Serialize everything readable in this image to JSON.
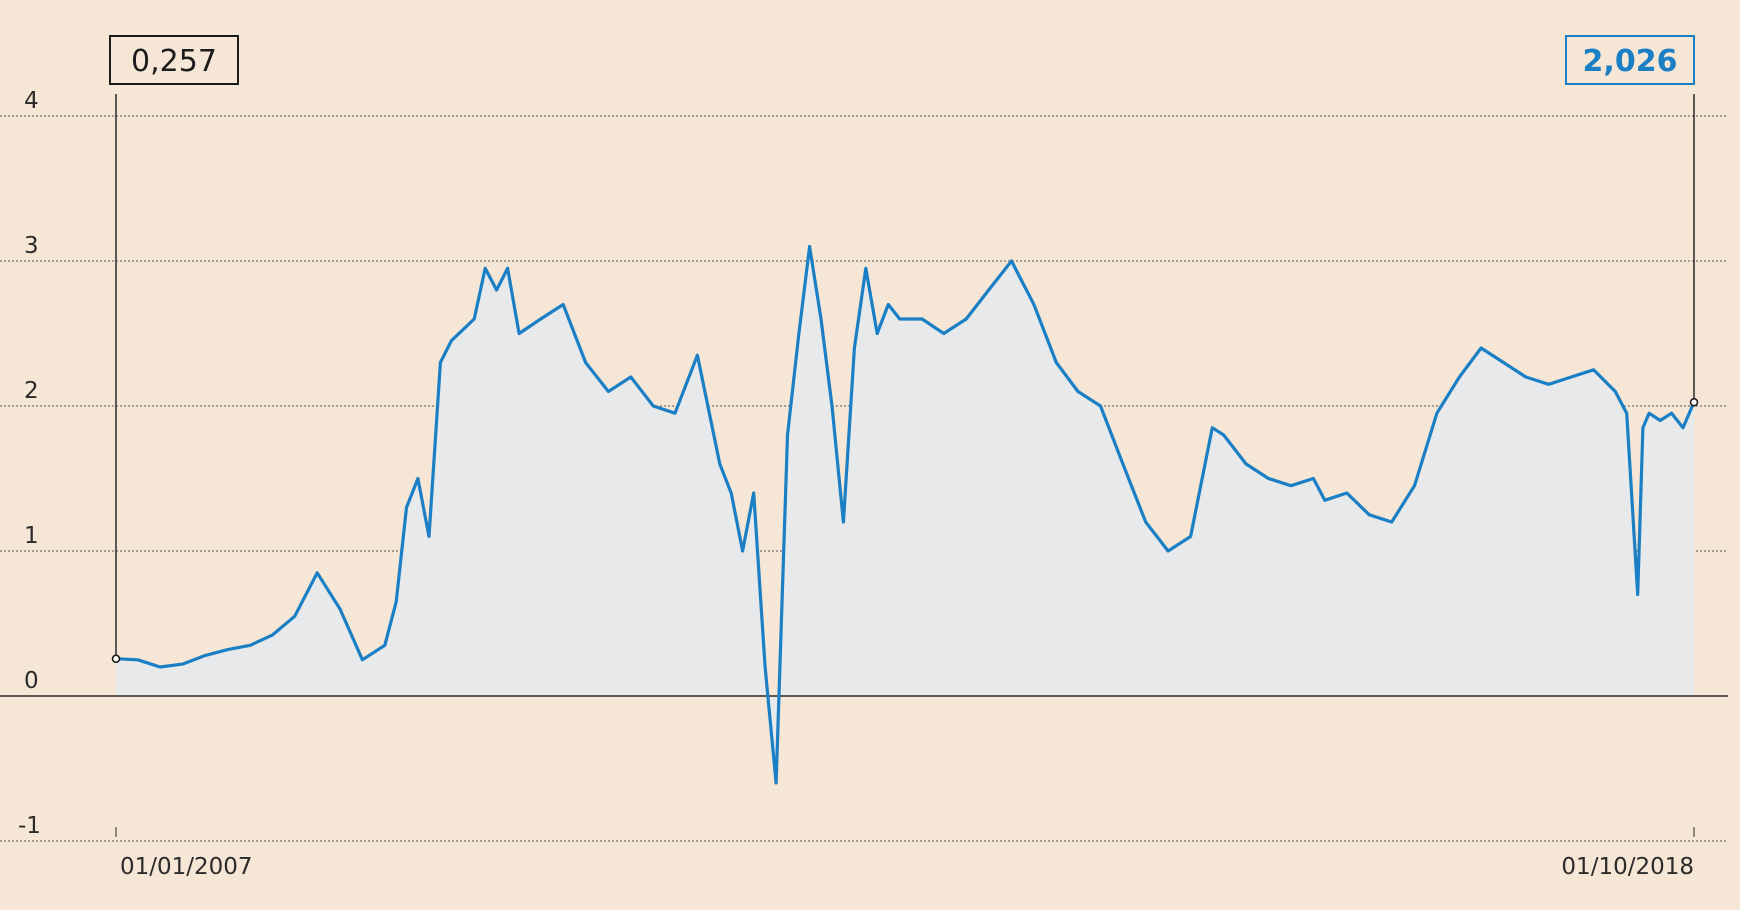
{
  "colors": {
    "background": "#f6e6d5",
    "area_fill": "#e8e9ea",
    "line": "#1a7fc4",
    "axis": "#2b2b2b",
    "grid": "#555555",
    "start_box": "#1c1c1c",
    "end_box": "#1a7fc4"
  },
  "callouts": {
    "start_value": "0,257",
    "end_value": "2,026"
  },
  "chart_data": {
    "type": "area",
    "title": "",
    "xlabel": "",
    "ylabel": "",
    "ylim": [
      -1,
      4
    ],
    "y_ticks": [
      -1,
      0,
      1,
      2,
      3,
      4
    ],
    "y_tick_labels": [
      "-1",
      "0",
      "1",
      "2",
      "3",
      "4"
    ],
    "x_tick_labels": [
      "01/01/2007",
      "01/10/2018"
    ],
    "xlim": [
      "2007-01-01",
      "2018-10-01"
    ],
    "grid": true,
    "legend": "none",
    "series": [
      {
        "x": [
          "2007-01-01",
          "2007-03-01",
          "2007-05-01",
          "2007-07-01",
          "2007-09-01",
          "2007-11-01",
          "2008-01-01",
          "2008-03-01",
          "2008-05-01",
          "2008-07-01",
          "2008-09-01",
          "2008-11-01",
          "2009-01-01",
          "2009-02-01",
          "2009-03-01",
          "2009-04-01",
          "2009-05-01",
          "2009-06-01",
          "2009-07-01",
          "2009-09-01",
          "2009-10-01",
          "2009-11-01",
          "2009-12-01",
          "2010-01-01",
          "2010-03-01",
          "2010-05-01",
          "2010-07-01",
          "2010-09-01",
          "2010-11-01",
          "2011-01-01",
          "2011-03-01",
          "2011-05-01",
          "2011-07-01",
          "2011-08-01",
          "2011-09-01",
          "2011-10-01",
          "2011-11-01",
          "2011-12-01",
          "2012-01-01",
          "2012-02-01",
          "2012-03-01",
          "2012-04-01",
          "2012-05-01",
          "2012-06-01",
          "2012-07-01",
          "2012-08-01",
          "2012-09-01",
          "2012-10-01",
          "2012-11-01",
          "2013-01-01",
          "2013-03-01",
          "2013-05-01",
          "2013-07-01",
          "2013-09-01",
          "2013-11-01",
          "2014-01-01",
          "2014-03-01",
          "2014-05-01",
          "2014-07-01",
          "2014-09-01",
          "2014-11-01",
          "2015-01-01",
          "2015-03-01",
          "2015-04-01",
          "2015-06-01",
          "2015-08-01",
          "2015-10-01",
          "2015-12-01",
          "2016-01-01",
          "2016-03-01",
          "2016-05-01",
          "2016-07-01",
          "2016-09-01",
          "2016-11-01",
          "2017-01-01",
          "2017-03-01",
          "2017-05-01",
          "2017-07-01",
          "2017-09-01",
          "2017-11-01",
          "2018-01-01",
          "2018-03-01",
          "2018-04-01",
          "2018-05-01",
          "2018-05-15",
          "2018-06-01",
          "2018-07-01",
          "2018-08-01",
          "2018-09-01",
          "2018-10-01"
        ],
        "values": [
          0.257,
          0.25,
          0.2,
          0.22,
          0.28,
          0.32,
          0.35,
          0.42,
          0.55,
          0.85,
          0.6,
          0.25,
          0.35,
          0.65,
          1.3,
          1.5,
          1.1,
          2.3,
          2.45,
          2.6,
          2.95,
          2.8,
          2.95,
          2.5,
          2.6,
          2.7,
          2.3,
          2.1,
          2.2,
          2.0,
          1.95,
          2.35,
          1.6,
          1.4,
          1.0,
          1.4,
          0.2,
          -0.6,
          1.8,
          2.5,
          3.1,
          2.6,
          2.0,
          1.2,
          2.4,
          2.95,
          2.5,
          2.7,
          2.6,
          2.6,
          2.5,
          2.6,
          2.8,
          3.0,
          2.7,
          2.3,
          2.1,
          2.0,
          1.6,
          1.2,
          1.0,
          1.1,
          1.85,
          1.8,
          1.6,
          1.5,
          1.45,
          1.5,
          1.35,
          1.4,
          1.25,
          1.2,
          1.45,
          1.95,
          2.2,
          2.4,
          2.3,
          2.2,
          2.15,
          2.2,
          2.25,
          2.1,
          1.95,
          0.7,
          1.85,
          1.95,
          1.9,
          1.95,
          1.85,
          2.026
        ]
      }
    ]
  }
}
